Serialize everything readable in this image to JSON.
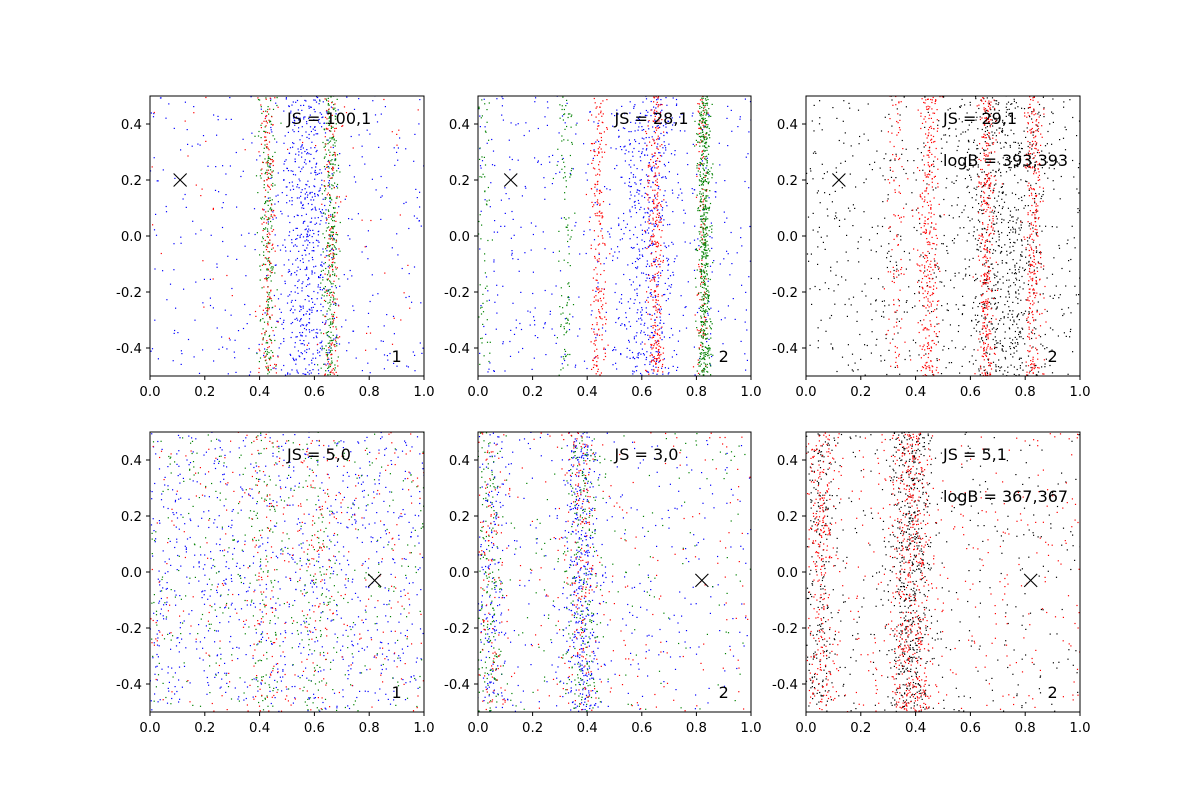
{
  "chart_data": [
    {
      "type": "scatter",
      "panel": "top-left",
      "xlim": [
        0.0,
        1.0
      ],
      "ylim": [
        -0.5,
        0.5
      ],
      "xticks": [
        "0.0",
        "0.2",
        "0.4",
        "0.6",
        "0.8",
        "1.0"
      ],
      "yticks": [
        "0.4",
        "0.2",
        "0.0",
        "-0.2",
        "-0.4"
      ],
      "annotations": {
        "js": "JS = 100,1",
        "logb": "",
        "corner": "1"
      },
      "marker": {
        "x": 0.11,
        "y": 0.2
      },
      "series": [
        {
          "name": "blue",
          "color": "#0000ff",
          "count": 900,
          "bands": [
            [
              0.57,
              0.05,
              0.6
            ],
            [
              0.5,
              0.3,
              0.4
            ]
          ]
        },
        {
          "name": "green",
          "color": "#008000",
          "count": 550,
          "bands": [
            [
              0.43,
              0.015,
              0.45
            ],
            [
              0.66,
              0.015,
              0.55
            ]
          ]
        },
        {
          "name": "red",
          "color": "#ff0000",
          "count": 380,
          "bands": [
            [
              0.43,
              0.015,
              0.4
            ],
            [
              0.66,
              0.015,
              0.4
            ],
            [
              0.5,
              0.3,
              0.2
            ]
          ]
        }
      ]
    },
    {
      "type": "scatter",
      "panel": "top-middle",
      "xlim": [
        0.0,
        1.0
      ],
      "ylim": [
        -0.5,
        0.5
      ],
      "xticks": [
        "0.0",
        "0.2",
        "0.4",
        "0.6",
        "0.8",
        "1.0"
      ],
      "yticks": [
        "0.4",
        "0.2",
        "0.0",
        "-0.2",
        "-0.4"
      ],
      "annotations": {
        "js": "JS = 28,1",
        "logb": "",
        "corner": "2"
      },
      "marker": {
        "x": 0.12,
        "y": 0.2
      },
      "series": [
        {
          "name": "blue",
          "color": "#0000ff",
          "count": 950,
          "bands": [
            [
              0.62,
              0.06,
              0.5
            ],
            [
              0.5,
              0.3,
              0.5
            ]
          ]
        },
        {
          "name": "red",
          "color": "#ff0000",
          "count": 650,
          "bands": [
            [
              0.44,
              0.015,
              0.35
            ],
            [
              0.65,
              0.015,
              0.45
            ],
            [
              0.82,
              0.01,
              0.2
            ]
          ]
        },
        {
          "name": "green",
          "color": "#008000",
          "count": 750,
          "bands": [
            [
              0.83,
              0.012,
              0.75
            ],
            [
              0.32,
              0.015,
              0.15
            ],
            [
              0.02,
              0.015,
              0.1
            ]
          ]
        }
      ]
    },
    {
      "type": "scatter",
      "panel": "top-right",
      "xlim": [
        0.0,
        1.0
      ],
      "ylim": [
        -0.5,
        0.5
      ],
      "xticks": [
        "0.0",
        "0.2",
        "0.4",
        "0.6",
        "0.8",
        "1.0"
      ],
      "yticks": [
        "0.4",
        "0.2",
        "0.0",
        "-0.2",
        "-0.4"
      ],
      "annotations": {
        "js": "JS = 29,1",
        "logb": "logB = 393,393",
        "corner": "2"
      },
      "marker": {
        "x": 0.12,
        "y": 0.2
      },
      "series": [
        {
          "name": "black",
          "color": "#000000",
          "count": 1300,
          "bands": [
            [
              0.72,
              0.08,
              0.5
            ],
            [
              0.55,
              0.3,
              0.5
            ]
          ]
        },
        {
          "name": "red",
          "color": "#ff0000",
          "count": 1100,
          "bands": [
            [
              0.45,
              0.02,
              0.3
            ],
            [
              0.66,
              0.015,
              0.35
            ],
            [
              0.83,
              0.015,
              0.25
            ],
            [
              0.33,
              0.015,
              0.1
            ]
          ]
        }
      ]
    },
    {
      "type": "scatter",
      "panel": "bottom-left",
      "xlim": [
        0.0,
        1.0
      ],
      "ylim": [
        -0.5,
        0.5
      ],
      "xticks": [
        "0.0",
        "0.2",
        "0.4",
        "0.6",
        "0.8",
        "1.0"
      ],
      "yticks": [
        "0.4",
        "0.2",
        "0.0",
        "-0.2",
        "-0.4"
      ],
      "annotations": {
        "js": "JS = 5,0",
        "logb": "",
        "corner": "1"
      },
      "marker": {
        "x": 0.82,
        "y": -0.03
      },
      "series": [
        {
          "name": "blue",
          "color": "#0000ff",
          "count": 900,
          "bands": [
            [
              0.5,
              0.3,
              1.0
            ]
          ]
        },
        {
          "name": "green",
          "color": "#008000",
          "count": 550,
          "bands": [
            [
              0.5,
              0.3,
              0.7
            ],
            [
              0.42,
              0.03,
              0.15
            ],
            [
              0.6,
              0.03,
              0.15
            ]
          ]
        },
        {
          "name": "red",
          "color": "#ff0000",
          "count": 450,
          "bands": [
            [
              0.5,
              0.3,
              0.7
            ],
            [
              0.42,
              0.03,
              0.15
            ],
            [
              0.6,
              0.03,
              0.15
            ]
          ]
        }
      ]
    },
    {
      "type": "scatter",
      "panel": "bottom-middle",
      "xlim": [
        0.0,
        1.0
      ],
      "ylim": [
        -0.5,
        0.5
      ],
      "xticks": [
        "0.0",
        "0.2",
        "0.4",
        "0.6",
        "0.8",
        "1.0"
      ],
      "yticks": [
        "0.4",
        "0.2",
        "0.0",
        "-0.2",
        "-0.4"
      ],
      "annotations": {
        "js": "JS = 3,0",
        "logb": "",
        "corner": "2"
      },
      "marker": {
        "x": 0.82,
        "y": -0.03
      },
      "series": [
        {
          "name": "blue",
          "color": "#0000ff",
          "count": 850,
          "bands": [
            [
              0.38,
              0.035,
              0.45
            ],
            [
              0.05,
              0.03,
              0.2
            ],
            [
              0.5,
              0.3,
              0.35
            ]
          ]
        },
        {
          "name": "green",
          "color": "#008000",
          "count": 550,
          "bands": [
            [
              0.38,
              0.035,
              0.4
            ],
            [
              0.04,
              0.025,
              0.35
            ],
            [
              0.5,
              0.3,
              0.25
            ]
          ]
        },
        {
          "name": "red",
          "color": "#ff0000",
          "count": 450,
          "bands": [
            [
              0.38,
              0.035,
              0.35
            ],
            [
              0.05,
              0.03,
              0.25
            ],
            [
              0.5,
              0.3,
              0.4
            ]
          ]
        }
      ]
    },
    {
      "type": "scatter",
      "panel": "bottom-right",
      "xlim": [
        0.0,
        1.0
      ],
      "ylim": [
        -0.5,
        0.5
      ],
      "xticks": [
        "0.0",
        "0.2",
        "0.4",
        "0.6",
        "0.8",
        "1.0"
      ],
      "yticks": [
        "0.4",
        "0.2",
        "0.0",
        "-0.2",
        "-0.4"
      ],
      "annotations": {
        "js": "JS = 5,1",
        "logb": "logB = 367,367",
        "corner": "2"
      },
      "marker": {
        "x": 0.82,
        "y": -0.03
      },
      "series": [
        {
          "name": "black",
          "color": "#000000",
          "count": 1100,
          "bands": [
            [
              0.38,
              0.04,
              0.5
            ],
            [
              0.05,
              0.03,
              0.2
            ],
            [
              0.5,
              0.3,
              0.3
            ]
          ]
        },
        {
          "name": "red",
          "color": "#ff0000",
          "count": 1100,
          "bands": [
            [
              0.38,
              0.04,
              0.45
            ],
            [
              0.05,
              0.03,
              0.25
            ],
            [
              0.5,
              0.3,
              0.3
            ]
          ]
        }
      ]
    }
  ]
}
